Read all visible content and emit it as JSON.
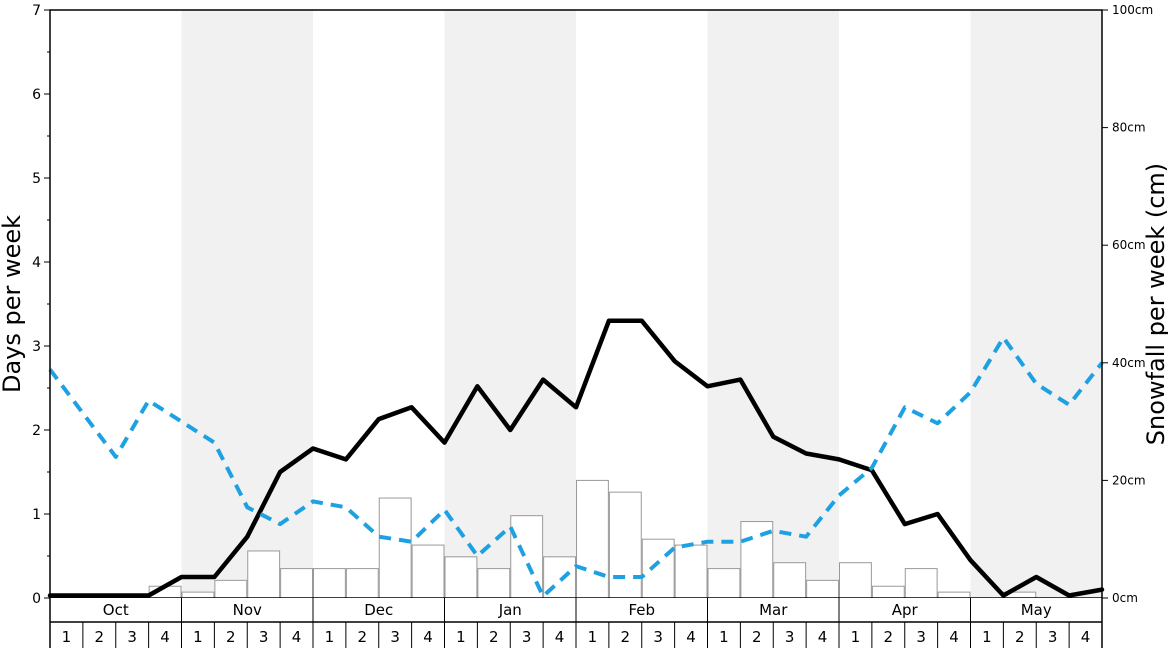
{
  "chart_data": {
    "type": "bar",
    "ylabel_left": "Days per week",
    "ylabel_right": "Snowfall per week (cm)",
    "ylim_left": [
      0,
      7
    ],
    "ylim_right": [
      0,
      100
    ],
    "yticks_left": [
      "0",
      "1",
      "2",
      "3",
      "4",
      "5",
      "6",
      "7"
    ],
    "yticks_right": [
      "0cm",
      "20cm",
      "40cm",
      "60cm",
      "80cm",
      "100cm"
    ],
    "months": [
      "Oct",
      "Nov",
      "Dec",
      "Jan",
      "Feb",
      "Mar",
      "Apr",
      "May"
    ],
    "week_labels": [
      "1",
      "2",
      "3",
      "4"
    ],
    "colors": {
      "band": "#f1f1f1",
      "bars": "#ffffff",
      "bar_stroke": "#999999",
      "line_black": "#000000",
      "line_blue": "#1ea1e3"
    },
    "series": [
      {
        "type": "bar",
        "axis": "right",
        "values": [
          0,
          0,
          0,
          2,
          1,
          3,
          8,
          5,
          5,
          5,
          17,
          9,
          7,
          5,
          14,
          7,
          20,
          18,
          10,
          9,
          5,
          13,
          6,
          3,
          6,
          2,
          5,
          1,
          0,
          1,
          0,
          0
        ]
      },
      {
        "type": "line",
        "axis": "left",
        "style": "solid",
        "color": "#000000",
        "values": [
          0.03,
          0.03,
          0.03,
          0.03,
          0.25,
          0.25,
          0.73,
          1.5,
          1.78,
          1.65,
          2.13,
          2.27,
          1.85,
          2.52,
          2.0,
          2.6,
          2.27,
          3.3,
          3.3,
          2.82,
          2.52,
          2.6,
          1.92,
          1.72,
          1.65,
          1.52,
          0.88,
          1.0,
          0.45,
          0.03,
          0.25,
          0.03,
          0.1
        ]
      },
      {
        "type": "line",
        "axis": "left",
        "style": "dashed",
        "color": "#1ea1e3",
        "values": [
          2.72,
          2.2,
          1.68,
          2.35,
          2.1,
          1.85,
          1.08,
          0.88,
          1.15,
          1.08,
          0.73,
          0.67,
          1.05,
          0.5,
          0.85,
          0.02,
          0.38,
          0.25,
          0.25,
          0.6,
          0.67,
          0.67,
          0.8,
          0.73,
          1.22,
          1.55,
          2.27,
          2.08,
          2.45,
          3.1,
          2.55,
          2.3,
          2.8
        ]
      }
    ]
  }
}
